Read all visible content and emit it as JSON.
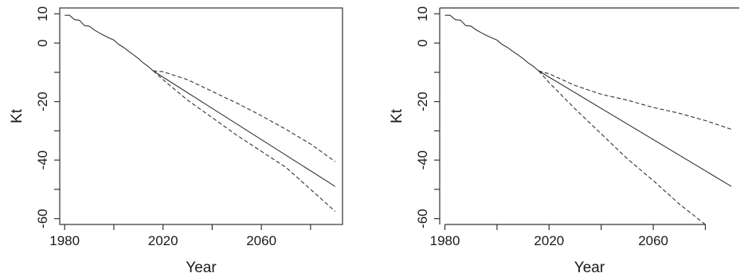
{
  "chart_data": [
    {
      "type": "line",
      "title": "",
      "xlabel": "Year",
      "ylabel": "Kt",
      "xlim": [
        1978,
        2093
      ],
      "ylim": [
        -62,
        12
      ],
      "xticks": [
        1980,
        2020,
        2060
      ],
      "yticks": [
        10,
        0,
        -20,
        -40,
        -60
      ],
      "x_minor_ticks": [
        2000,
        2040,
        2080
      ],
      "y_minor_ticks": [
        -10,
        -30,
        -50
      ],
      "grid": false,
      "series": [
        {
          "style": "solid",
          "x": [
            1980,
            1982,
            1984,
            1986,
            1988,
            1990,
            1992,
            1994,
            1996,
            1998,
            2000,
            2002,
            2004,
            2006,
            2008,
            2010,
            2012,
            2014,
            2016,
            2090
          ],
          "y": [
            9.5,
            9.5,
            8.0,
            7.8,
            6.0,
            5.8,
            4.5,
            3.5,
            2.6,
            1.8,
            1.0,
            -0.5,
            -1.5,
            -2.8,
            -4.0,
            -5.3,
            -6.8,
            -8.0,
            -9.5,
            -49
          ]
        },
        {
          "style": "dashed",
          "x": [
            2016,
            2020,
            2030,
            2040,
            2050,
            2060,
            2070,
            2080,
            2090
          ],
          "y": [
            -9.5,
            -9.8,
            -12.5,
            -16.5,
            -20.5,
            -24.8,
            -29.5,
            -34.5,
            -40.5
          ]
        },
        {
          "style": "dashed",
          "x": [
            2016,
            2020,
            2030,
            2040,
            2050,
            2060,
            2070,
            2080,
            2090
          ],
          "y": [
            -9.5,
            -12.5,
            -19.5,
            -25.5,
            -31.5,
            -37.0,
            -42.5,
            -50.0,
            -57.5
          ]
        }
      ]
    },
    {
      "type": "line",
      "title": "",
      "xlabel": "Year",
      "ylabel": "Kt",
      "xlim": [
        1978,
        2093
      ],
      "ylim": [
        -62,
        12
      ],
      "xticks": [
        1980,
        2020,
        2060
      ],
      "yticks": [
        10,
        0,
        -20,
        -40,
        -60
      ],
      "x_minor_ticks": [
        2000,
        2040,
        2080
      ],
      "y_minor_ticks": [
        -10,
        -30,
        -50
      ],
      "grid": false,
      "series": [
        {
          "style": "solid",
          "x": [
            1980,
            1982,
            1984,
            1986,
            1988,
            1990,
            1992,
            1994,
            1996,
            1998,
            2000,
            2002,
            2004,
            2006,
            2008,
            2010,
            2012,
            2014,
            2016,
            2090
          ],
          "y": [
            9.5,
            9.5,
            8.0,
            7.8,
            6.0,
            5.8,
            4.5,
            3.5,
            2.6,
            1.8,
            1.0,
            -0.5,
            -1.5,
            -2.8,
            -4.0,
            -5.3,
            -6.8,
            -8.0,
            -9.5,
            -49
          ]
        },
        {
          "style": "dashed",
          "x": [
            2016,
            2020,
            2030,
            2040,
            2050,
            2060,
            2070,
            2080,
            2090
          ],
          "y": [
            -9.5,
            -10.5,
            -14.5,
            -17.5,
            -19.5,
            -22.0,
            -24.0,
            -26.5,
            -29.5
          ]
        },
        {
          "style": "dashed",
          "x": [
            2016,
            2020,
            2030,
            2040,
            2050,
            2060,
            2070,
            2080
          ],
          "y": [
            -9.5,
            -13.5,
            -22.5,
            -31.0,
            -39.5,
            -47.0,
            -55.0,
            -62.0
          ]
        }
      ]
    }
  ]
}
